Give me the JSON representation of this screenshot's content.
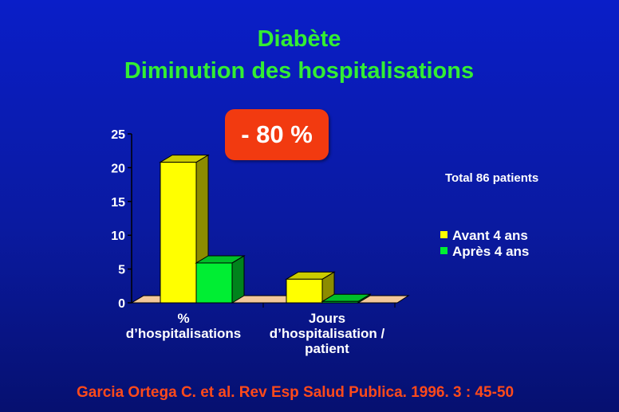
{
  "slide": {
    "title_line1": "Diabète",
    "title_line2": "Diminution des hospitalisations",
    "badge": "- 80 %",
    "annotation": "Total 86 patients",
    "source": "Garcia Ortega C. et al. Rev Esp Salud Publica. 1996. 3 : 45-50"
  },
  "chart_data": {
    "type": "bar",
    "categories": [
      [
        "%",
        "d’hospitalisations"
      ],
      [
        "Jours",
        "d’hospitalisation /",
        "patient"
      ]
    ],
    "series": [
      {
        "name": "Avant 4 ans",
        "color": "#ffff00",
        "values": [
          20.8,
          3.5
        ]
      },
      {
        "name": "Après 4 ans",
        "color": "#00ee33",
        "values": [
          5.9,
          0.2
        ]
      }
    ],
    "ylim": [
      0,
      25
    ],
    "yticks": [
      0,
      5,
      10,
      15,
      20,
      25
    ],
    "legend_position": "right",
    "grid": false
  }
}
